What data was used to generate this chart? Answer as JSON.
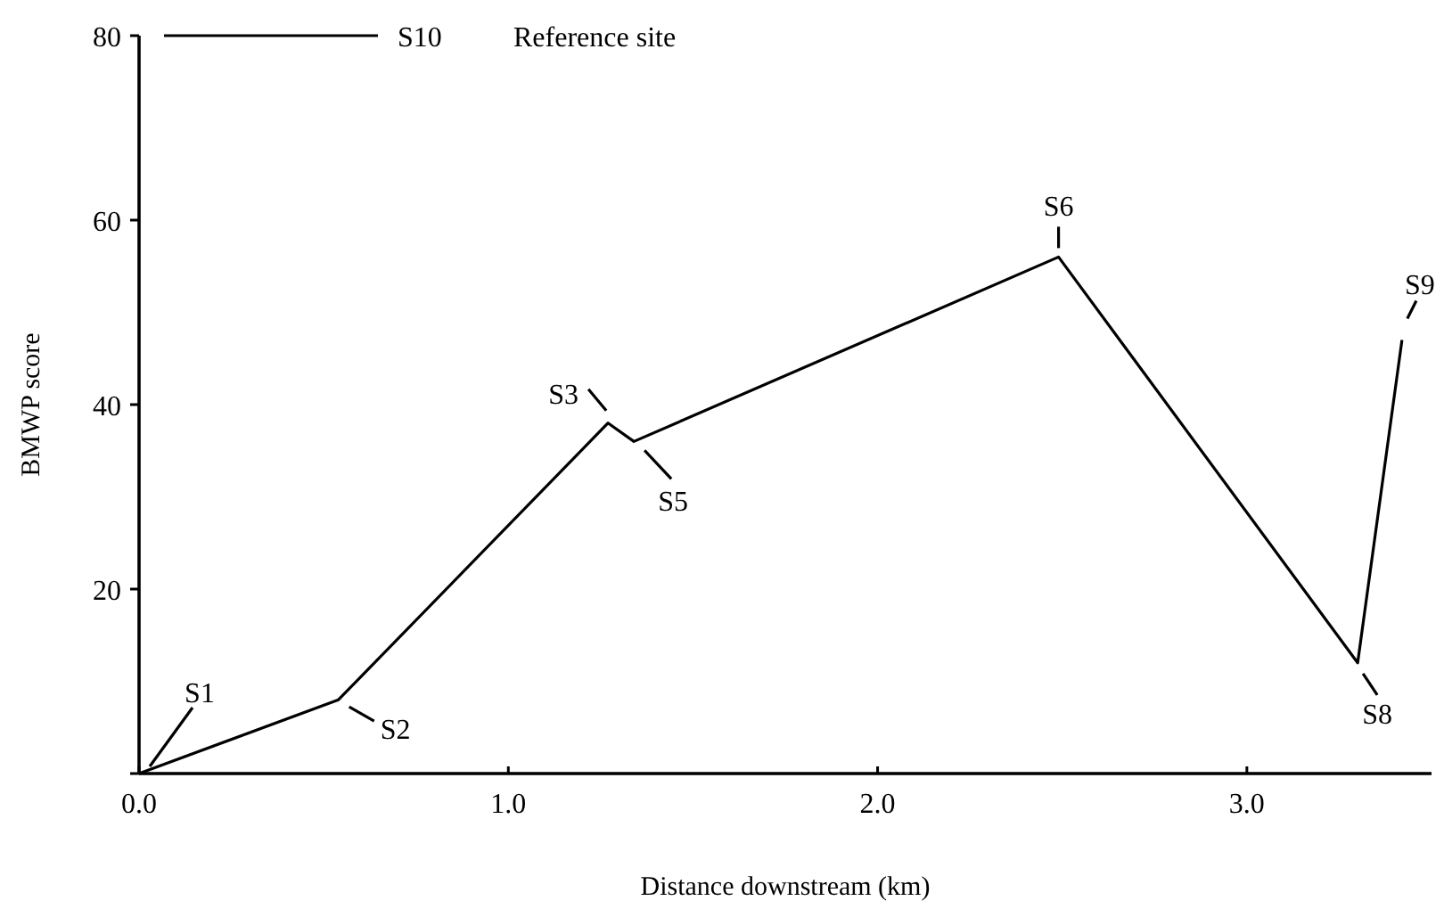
{
  "chart_data": {
    "type": "line",
    "xlabel": "Distance downstream (km)",
    "ylabel": "BMWP score",
    "x": [
      0,
      0.54,
      1.27,
      1.34,
      2.49,
      3.3,
      3.42
    ],
    "series": [
      {
        "color": "#000000",
        "values": [
          0,
          8,
          38,
          36,
          56,
          12,
          47
        ]
      }
    ],
    "xlim": [
      0,
      3.5
    ],
    "ylim": [
      0,
      80
    ],
    "xticks": [
      {
        "value": 0,
        "label": "0.0"
      },
      {
        "value": 1,
        "label": "1.0"
      },
      {
        "value": 2,
        "label": "2.0"
      },
      {
        "value": 3,
        "label": "3.0"
      }
    ],
    "yticks": [
      {
        "value": 0,
        "label": null
      },
      20,
      40,
      60,
      80
    ],
    "marker": "none",
    "line_style": "solid",
    "ref_lines": [
      {
        "axis": "y",
        "value": 80,
        "label": "S10",
        "color": "#000000"
      }
    ],
    "annotations": [
      {
        "text": "S1",
        "x": 0,
        "y": 0
      },
      {
        "text": "S2",
        "x": 0.54,
        "y": 8
      },
      {
        "text": "S3",
        "x": 1.27,
        "y": 38
      },
      {
        "text": "S5",
        "x": 1.34,
        "y": 36
      },
      {
        "text": "S6",
        "x": 2.49,
        "y": 56
      },
      {
        "text": "S8",
        "x": 3.3,
        "y": 12
      },
      {
        "text": "S9",
        "x": 3.42,
        "y": 47
      },
      "Reference site"
    ]
  }
}
